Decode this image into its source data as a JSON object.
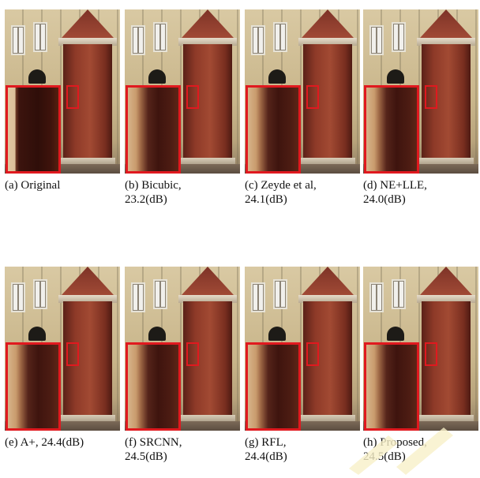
{
  "figure": {
    "panels": [
      {
        "id": "a",
        "caption_line1": "(a) Original",
        "caption_line2": "",
        "zoom_style": "sharp"
      },
      {
        "id": "b",
        "caption_line1": "(b)          Bicubic,",
        "caption_line2": "23.2(dB)",
        "zoom_style": "soft"
      },
      {
        "id": "c",
        "caption_line1": "(c) Zeyde et al,",
        "caption_line2": "24.1(dB)",
        "zoom_style": "soft"
      },
      {
        "id": "d",
        "caption_line1": "(d)       NE+LLE,",
        "caption_line2": "24.0(dB)",
        "zoom_style": "soft"
      },
      {
        "id": "e",
        "caption_line1": "(e) A+, 24.4(dB)",
        "caption_line2": "",
        "zoom_style": "soft"
      },
      {
        "id": "f",
        "caption_line1": "(f)          SRCNN,",
        "caption_line2": "24.5(dB)",
        "zoom_style": "soft"
      },
      {
        "id": "g",
        "caption_line1": "(g)               RFL,",
        "caption_line2": "24.4(dB)",
        "zoom_style": "soft"
      },
      {
        "id": "h",
        "caption_line1": "(h)       Proposed,",
        "caption_line2": "24.5(dB)",
        "zoom_style": "soft"
      }
    ]
  },
  "colors": {
    "highlight_box": "#e0191f"
  }
}
